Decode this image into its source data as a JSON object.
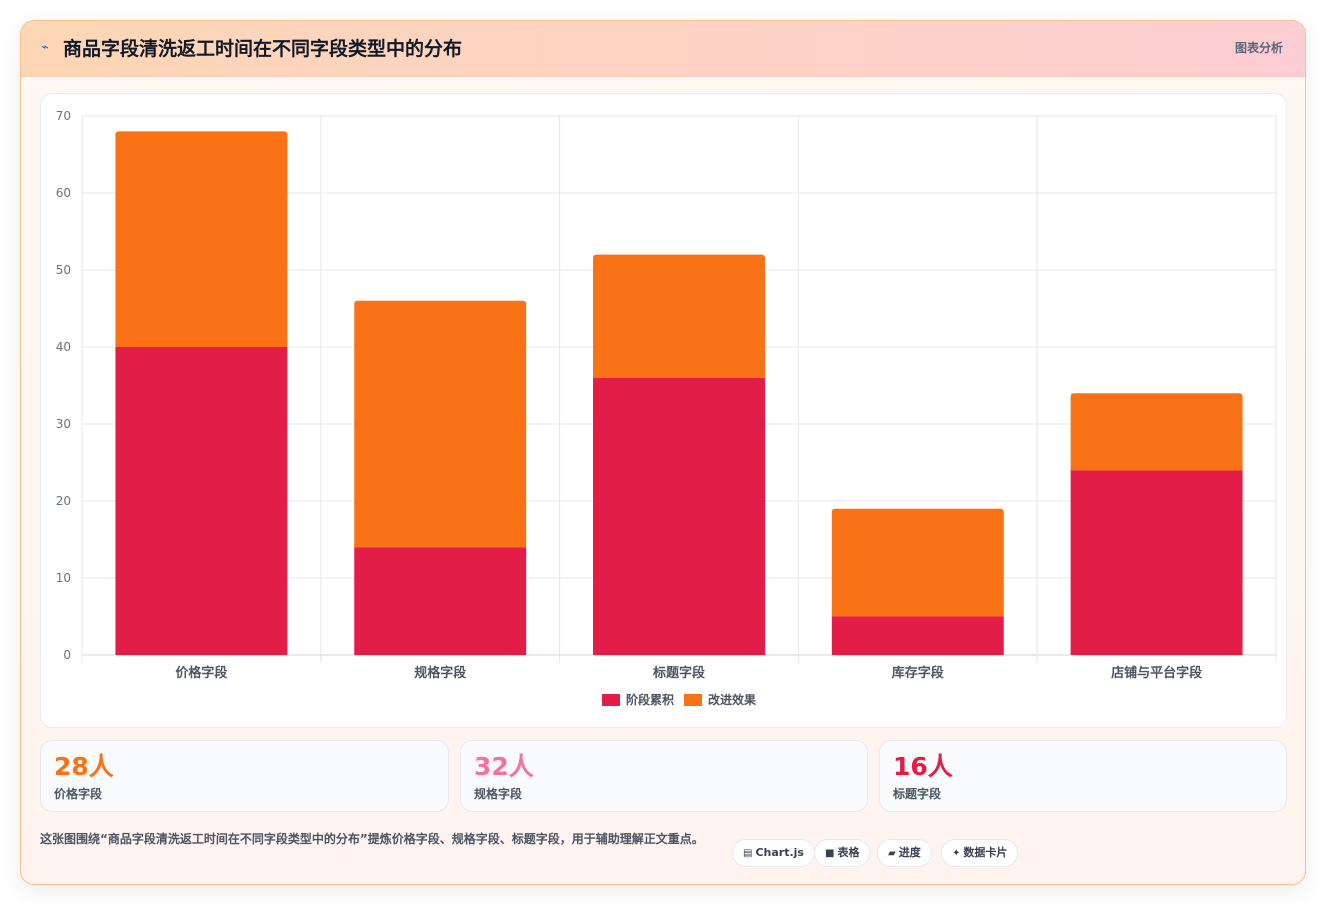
{
  "header": {
    "icon": "chart-spark-icon",
    "title": "商品字段清洗返工时间在不同字段类型中的分布",
    "tag": "图表分析"
  },
  "chart_data": {
    "type": "bar",
    "stacked": true,
    "categories": [
      "价格字段",
      "规格字段",
      "标题字段",
      "库存字段",
      "店铺与平台字段"
    ],
    "series": [
      {
        "name": "阶段累积",
        "color": "#e11d48",
        "values": [
          40,
          14,
          36,
          5,
          24
        ]
      },
      {
        "name": "改进效果",
        "color": "#f97316",
        "values": [
          28,
          32,
          16,
          14,
          10
        ]
      }
    ],
    "ylim": [
      0,
      70
    ],
    "yticks": [
      0,
      10,
      20,
      30,
      40,
      50,
      60,
      70
    ],
    "grid": true,
    "legend": "bottom"
  },
  "stats": [
    {
      "value": "28人",
      "label": "价格字段",
      "color": "#f97316"
    },
    {
      "value": "32人",
      "label": "规格字段",
      "color": "#f472a0"
    },
    {
      "value": "16人",
      "label": "标题字段",
      "color": "#e11d48"
    }
  ],
  "note": "这张图围绕“商品字段清洗返工时间在不同字段类型中的分布”提炼价格字段、规格字段、标题字段，用于辅助理解正文重点。",
  "pills": [
    {
      "icon": "▤",
      "label": "Chart.js"
    },
    {
      "icon": "■",
      "label": "表格"
    },
    {
      "icon": "▰",
      "label": "进度"
    },
    {
      "icon": "✦",
      "label": "数据卡片"
    }
  ]
}
